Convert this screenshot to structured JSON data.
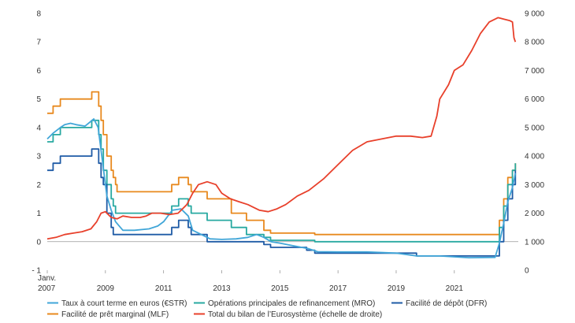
{
  "chart_data": {
    "type": "line",
    "title": "",
    "x_range": [
      2007.0,
      2023.2
    ],
    "y_left": {
      "range": [
        -1,
        8
      ],
      "ticks": [
        "- 1",
        "0",
        "1",
        "2",
        "3",
        "4",
        "5",
        "6",
        "7",
        "8"
      ],
      "tick_values": [
        -1,
        0,
        1,
        2,
        3,
        4,
        5,
        6,
        7,
        8
      ]
    },
    "y_right": {
      "range": [
        0,
        9000
      ],
      "ticks": [
        "0",
        "1 000",
        "2 000",
        "3 000",
        "4 000",
        "5 000",
        "6 000",
        "7 000",
        "8 000",
        "9 000"
      ],
      "tick_values": [
        0,
        1000,
        2000,
        3000,
        4000,
        5000,
        6000,
        7000,
        8000,
        9000
      ]
    },
    "x_ticks": [
      {
        "x": 2007.0,
        "label": "2007",
        "sub": "Janv."
      },
      {
        "x": 2009.0,
        "label": "2009"
      },
      {
        "x": 2011.0,
        "label": "2011"
      },
      {
        "x": 2013.0,
        "label": "2013"
      },
      {
        "x": 2015.0,
        "label": "2015"
      },
      {
        "x": 2017.0,
        "label": "2017"
      },
      {
        "x": 2019.0,
        "label": "2019"
      },
      {
        "x": 2021.0,
        "label": "2021"
      }
    ],
    "legend": [
      {
        "label": "Taux à court terme en euros (€STR)",
        "color": "#41A6D8"
      },
      {
        "label": "Opérations principales de refinancement (MRO)",
        "color": "#28A9A1"
      },
      {
        "label": "Facilité de dépôt (DFR)",
        "color": "#1F5BA6"
      },
      {
        "label": "Facilité de prêt marginal (MLF)",
        "color": "#E8891E"
      },
      {
        "label": "Total du bilan de l’Eurosystème (échelle de droite)",
        "color": "#E8402B"
      }
    ],
    "series": [
      {
        "name": "Facilité de prêt marginal (MLF)",
        "color": "#E8891E",
        "axis": "left",
        "step": true,
        "points": [
          [
            2007.0,
            4.5
          ],
          [
            2007.2,
            4.75
          ],
          [
            2007.45,
            5.0
          ],
          [
            2008.53,
            5.25
          ],
          [
            2008.77,
            4.75
          ],
          [
            2008.85,
            4.25
          ],
          [
            2008.93,
            3.75
          ],
          [
            2009.05,
            3.0
          ],
          [
            2009.2,
            2.5
          ],
          [
            2009.27,
            2.25
          ],
          [
            2009.35,
            2.0
          ],
          [
            2009.4,
            1.75
          ],
          [
            2011.28,
            2.0
          ],
          [
            2011.52,
            2.25
          ],
          [
            2011.85,
            2.0
          ],
          [
            2011.95,
            1.75
          ],
          [
            2012.5,
            1.5
          ],
          [
            2013.33,
            1.0
          ],
          [
            2013.85,
            0.75
          ],
          [
            2014.45,
            0.4
          ],
          [
            2014.68,
            0.3
          ],
          [
            2015.95,
            0.3
          ],
          [
            2016.2,
            0.25
          ],
          [
            2022.53,
            0.25
          ],
          [
            2022.55,
            0.75
          ],
          [
            2022.7,
            1.5
          ],
          [
            2022.84,
            2.25
          ],
          [
            2023.0,
            2.5
          ],
          [
            2023.1,
            2.75
          ]
        ]
      },
      {
        "name": "Opérations principales de refinancement (MRO)",
        "color": "#28A9A1",
        "axis": "left",
        "step": true,
        "points": [
          [
            2007.0,
            3.5
          ],
          [
            2007.2,
            3.75
          ],
          [
            2007.45,
            4.0
          ],
          [
            2008.53,
            4.25
          ],
          [
            2008.77,
            3.75
          ],
          [
            2008.85,
            3.25
          ],
          [
            2008.93,
            2.5
          ],
          [
            2009.05,
            2.0
          ],
          [
            2009.2,
            1.5
          ],
          [
            2009.27,
            1.25
          ],
          [
            2009.35,
            1.0
          ],
          [
            2011.28,
            1.25
          ],
          [
            2011.52,
            1.5
          ],
          [
            2011.85,
            1.25
          ],
          [
            2011.95,
            1.0
          ],
          [
            2012.5,
            0.75
          ],
          [
            2013.33,
            0.5
          ],
          [
            2013.85,
            0.25
          ],
          [
            2014.45,
            0.15
          ],
          [
            2014.68,
            0.05
          ],
          [
            2016.2,
            0.0
          ],
          [
            2022.53,
            0.0
          ],
          [
            2022.55,
            0.5
          ],
          [
            2022.7,
            1.25
          ],
          [
            2022.84,
            2.0
          ],
          [
            2023.0,
            2.5
          ],
          [
            2023.1,
            2.75
          ]
        ]
      },
      {
        "name": "Facilité de dépôt (DFR)",
        "color": "#1F5BA6",
        "axis": "left",
        "step": true,
        "points": [
          [
            2007.0,
            2.5
          ],
          [
            2007.2,
            2.75
          ],
          [
            2007.45,
            3.0
          ],
          [
            2008.53,
            3.25
          ],
          [
            2008.77,
            2.75
          ],
          [
            2008.85,
            2.25
          ],
          [
            2008.93,
            2.0
          ],
          [
            2009.05,
            1.0
          ],
          [
            2009.2,
            0.5
          ],
          [
            2009.27,
            0.25
          ],
          [
            2011.28,
            0.5
          ],
          [
            2011.52,
            0.75
          ],
          [
            2011.85,
            0.5
          ],
          [
            2011.95,
            0.25
          ],
          [
            2012.5,
            0.0
          ],
          [
            2014.45,
            -0.1
          ],
          [
            2014.68,
            -0.2
          ],
          [
            2015.92,
            -0.3
          ],
          [
            2016.2,
            -0.4
          ],
          [
            2019.7,
            -0.5
          ],
          [
            2022.53,
            -0.5
          ],
          [
            2022.55,
            0.0
          ],
          [
            2022.7,
            0.75
          ],
          [
            2022.84,
            1.5
          ],
          [
            2023.0,
            2.0
          ],
          [
            2023.1,
            2.5
          ]
        ]
      },
      {
        "name": "Taux à court terme en euros (€STR)",
        "color": "#41A6D8",
        "axis": "left",
        "step": false,
        "points": [
          [
            2007.0,
            3.6
          ],
          [
            2007.2,
            3.8
          ],
          [
            2007.45,
            4.0
          ],
          [
            2007.6,
            4.1
          ],
          [
            2007.8,
            4.15
          ],
          [
            2008.0,
            4.1
          ],
          [
            2008.3,
            4.05
          ],
          [
            2008.6,
            4.3
          ],
          [
            2008.75,
            4.0
          ],
          [
            2008.85,
            3.2
          ],
          [
            2008.95,
            2.4
          ],
          [
            2009.05,
            1.6
          ],
          [
            2009.2,
            1.1
          ],
          [
            2009.35,
            0.7
          ],
          [
            2009.6,
            0.4
          ],
          [
            2010.0,
            0.4
          ],
          [
            2010.5,
            0.45
          ],
          [
            2010.8,
            0.55
          ],
          [
            2011.0,
            0.7
          ],
          [
            2011.3,
            1.1
          ],
          [
            2011.6,
            1.15
          ],
          [
            2011.85,
            0.9
          ],
          [
            2012.0,
            0.4
          ],
          [
            2012.3,
            0.25
          ],
          [
            2012.6,
            0.1
          ],
          [
            2013.0,
            0.08
          ],
          [
            2013.5,
            0.1
          ],
          [
            2013.9,
            0.15
          ],
          [
            2014.2,
            0.25
          ],
          [
            2014.45,
            0.15
          ],
          [
            2014.7,
            0.0
          ],
          [
            2015.0,
            -0.05
          ],
          [
            2015.5,
            -0.15
          ],
          [
            2016.0,
            -0.25
          ],
          [
            2016.3,
            -0.35
          ],
          [
            2017.0,
            -0.36
          ],
          [
            2018.0,
            -0.36
          ],
          [
            2019.0,
            -0.4
          ],
          [
            2019.7,
            -0.5
          ],
          [
            2020.5,
            -0.5
          ],
          [
            2021.5,
            -0.56
          ],
          [
            2022.4,
            -0.55
          ],
          [
            2022.55,
            -0.05
          ],
          [
            2022.7,
            0.65
          ],
          [
            2022.84,
            1.4
          ],
          [
            2023.0,
            1.9
          ],
          [
            2023.1,
            2.4
          ]
        ]
      },
      {
        "name": "Total du bilan de l’Eurosystème (échelle de droite)",
        "color": "#E8402B",
        "axis": "right",
        "step": false,
        "points": [
          [
            2007.0,
            1100
          ],
          [
            2007.3,
            1150
          ],
          [
            2007.6,
            1250
          ],
          [
            2007.9,
            1300
          ],
          [
            2008.2,
            1350
          ],
          [
            2008.5,
            1450
          ],
          [
            2008.7,
            1700
          ],
          [
            2008.85,
            2000
          ],
          [
            2009.0,
            2050
          ],
          [
            2009.2,
            1850
          ],
          [
            2009.4,
            1800
          ],
          [
            2009.6,
            1900
          ],
          [
            2009.9,
            1850
          ],
          [
            2010.2,
            1850
          ],
          [
            2010.4,
            1900
          ],
          [
            2010.6,
            2000
          ],
          [
            2010.9,
            2000
          ],
          [
            2011.2,
            1950
          ],
          [
            2011.5,
            2000
          ],
          [
            2011.8,
            2300
          ],
          [
            2012.0,
            2700
          ],
          [
            2012.2,
            3000
          ],
          [
            2012.5,
            3100
          ],
          [
            2012.8,
            3000
          ],
          [
            2013.0,
            2700
          ],
          [
            2013.3,
            2500
          ],
          [
            2013.6,
            2400
          ],
          [
            2013.9,
            2300
          ],
          [
            2014.3,
            2100
          ],
          [
            2014.6,
            2050
          ],
          [
            2014.9,
            2150
          ],
          [
            2015.2,
            2300
          ],
          [
            2015.6,
            2600
          ],
          [
            2016.0,
            2800
          ],
          [
            2016.5,
            3200
          ],
          [
            2017.0,
            3700
          ],
          [
            2017.5,
            4200
          ],
          [
            2018.0,
            4500
          ],
          [
            2018.5,
            4600
          ],
          [
            2019.0,
            4700
          ],
          [
            2019.5,
            4700
          ],
          [
            2019.9,
            4650
          ],
          [
            2020.2,
            4700
          ],
          [
            2020.4,
            5400
          ],
          [
            2020.5,
            6000
          ],
          [
            2020.8,
            6500
          ],
          [
            2021.0,
            7000
          ],
          [
            2021.3,
            7200
          ],
          [
            2021.6,
            7700
          ],
          [
            2021.9,
            8300
          ],
          [
            2022.2,
            8700
          ],
          [
            2022.5,
            8850
          ],
          [
            2022.7,
            8800
          ],
          [
            2022.9,
            8750
          ],
          [
            2023.0,
            8700
          ],
          [
            2023.05,
            8150
          ],
          [
            2023.1,
            8000
          ]
        ]
      }
    ]
  }
}
